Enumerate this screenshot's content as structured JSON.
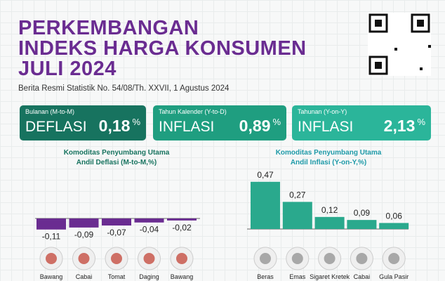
{
  "header": {
    "title": [
      "PERKEMBANGAN",
      "INDEKS HARGA KONSUMEN",
      "JULI 2024"
    ],
    "subtitle": "Berita Resmi Statistik No. 54/08/Th. XXVII, 1 Agustus 2024"
  },
  "indicators": [
    {
      "period": "Bulanan (M-to-M)",
      "status": "DEFLASI",
      "value": "0,18",
      "unit": "%"
    },
    {
      "period": "Tahun Kalender (Y-to-D)",
      "status": "INFLASI",
      "value": "0,89",
      "unit": "%"
    },
    {
      "period": "Tahunan (Y-on-Y)",
      "status": "INFLASI",
      "value": "2,13",
      "unit": "%"
    }
  ],
  "chart_data": [
    {
      "type": "bar",
      "title": [
        "Komoditas Penyumbang Utama",
        "Andil Deflasi (M-to-M,%)"
      ],
      "categories": [
        "Bawang",
        "Cabai",
        "Tomat",
        "Daging",
        "Bawang"
      ],
      "values": [
        -0.11,
        -0.09,
        -0.07,
        -0.04,
        -0.02
      ],
      "value_labels": [
        "-0,11",
        "-0,09",
        "-0,07",
        "-0,04",
        "-0,02"
      ],
      "color": "#6a2c91"
    },
    {
      "type": "bar",
      "title": [
        "Komoditas Penyumbang Utama",
        "Andil Inflasi (Y-on-Y,%)"
      ],
      "categories": [
        "Beras",
        "Emas",
        "Sigaret Kretek",
        "Cabai",
        "Gula Pasir"
      ],
      "values": [
        0.47,
        0.27,
        0.12,
        0.09,
        0.06
      ],
      "value_labels": [
        "0,47",
        "0,27",
        "0,12",
        "0,09",
        "0,06"
      ],
      "color": "#2aa98d"
    }
  ]
}
